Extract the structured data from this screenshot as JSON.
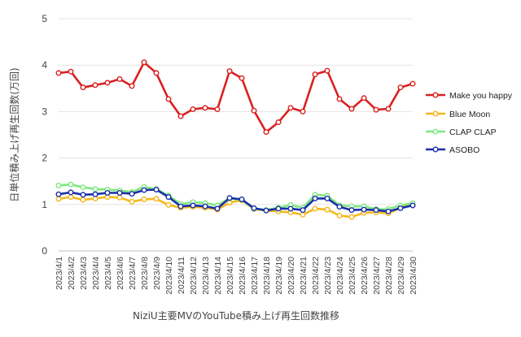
{
  "chart_data": {
    "type": "line",
    "title": "",
    "xlabel": "NiziU主要MVのYouTube積み上げ再生回数推移",
    "ylabel": "日単位積み上げ再生回数(万回)",
    "ylim": [
      0,
      5
    ],
    "yticks": [
      "0",
      "1",
      "2",
      "3",
      "4",
      "5"
    ],
    "grid": "horizontal",
    "legend_position": "right",
    "categories": [
      "2023/4/1",
      "2023/4/2",
      "2023/4/3",
      "2023/4/4",
      "2023/4/5",
      "2023/4/6",
      "2023/4/7",
      "2023/4/8",
      "2023/4/9",
      "2023/4/10",
      "2023/4/11",
      "2023/4/12",
      "2023/4/13",
      "2023/4/14",
      "2023/4/15",
      "2023/4/16",
      "2023/4/17",
      "2023/4/18",
      "2023/4/19",
      "2023/4/20",
      "2023/4/21",
      "2023/4/22",
      "2023/4/23",
      "2023/4/24",
      "2023/4/25",
      "2023/4/26",
      "2023/4/27",
      "2023/4/28",
      "2023/4/29",
      "2023/4/30"
    ],
    "series": [
      {
        "name": "Make you happy",
        "color": "#d92020",
        "values": [
          3.83,
          3.86,
          3.52,
          3.57,
          3.62,
          3.7,
          3.55,
          4.06,
          3.83,
          3.27,
          2.9,
          3.05,
          3.08,
          3.05,
          3.87,
          3.72,
          3.02,
          2.56,
          2.77,
          3.08,
          3.0,
          3.8,
          3.88,
          3.27,
          3.06,
          3.29,
          3.04,
          3.06,
          3.52,
          3.6
        ]
      },
      {
        "name": "Blue Moon",
        "color": "#f5b81c",
        "values": [
          1.12,
          1.16,
          1.1,
          1.13,
          1.16,
          1.15,
          1.06,
          1.11,
          1.12,
          0.99,
          0.93,
          0.95,
          0.93,
          0.89,
          1.04,
          1.09,
          0.9,
          0.87,
          0.85,
          0.83,
          0.78,
          0.91,
          0.89,
          0.76,
          0.73,
          0.82,
          0.83,
          0.81,
          0.93,
          1.0
        ]
      },
      {
        "name": "CLAP CLAP",
        "color": "#7ee87e",
        "values": [
          1.41,
          1.43,
          1.37,
          1.33,
          1.32,
          1.3,
          1.27,
          1.38,
          1.33,
          1.19,
          1.01,
          1.05,
          1.03,
          0.98,
          1.13,
          1.1,
          0.91,
          0.88,
          0.93,
          0.99,
          0.93,
          1.21,
          1.19,
          0.98,
          0.96,
          0.96,
          0.9,
          0.9,
          0.98,
          1.03
        ]
      },
      {
        "name": "ASOBO",
        "color": "#1a2fa8",
        "values": [
          1.22,
          1.26,
          1.21,
          1.22,
          1.25,
          1.25,
          1.23,
          1.31,
          1.32,
          1.16,
          0.96,
          0.98,
          0.96,
          0.91,
          1.14,
          1.11,
          0.92,
          0.87,
          0.91,
          0.91,
          0.88,
          1.13,
          1.13,
          0.95,
          0.88,
          0.89,
          0.88,
          0.85,
          0.92,
          0.98
        ]
      }
    ]
  }
}
